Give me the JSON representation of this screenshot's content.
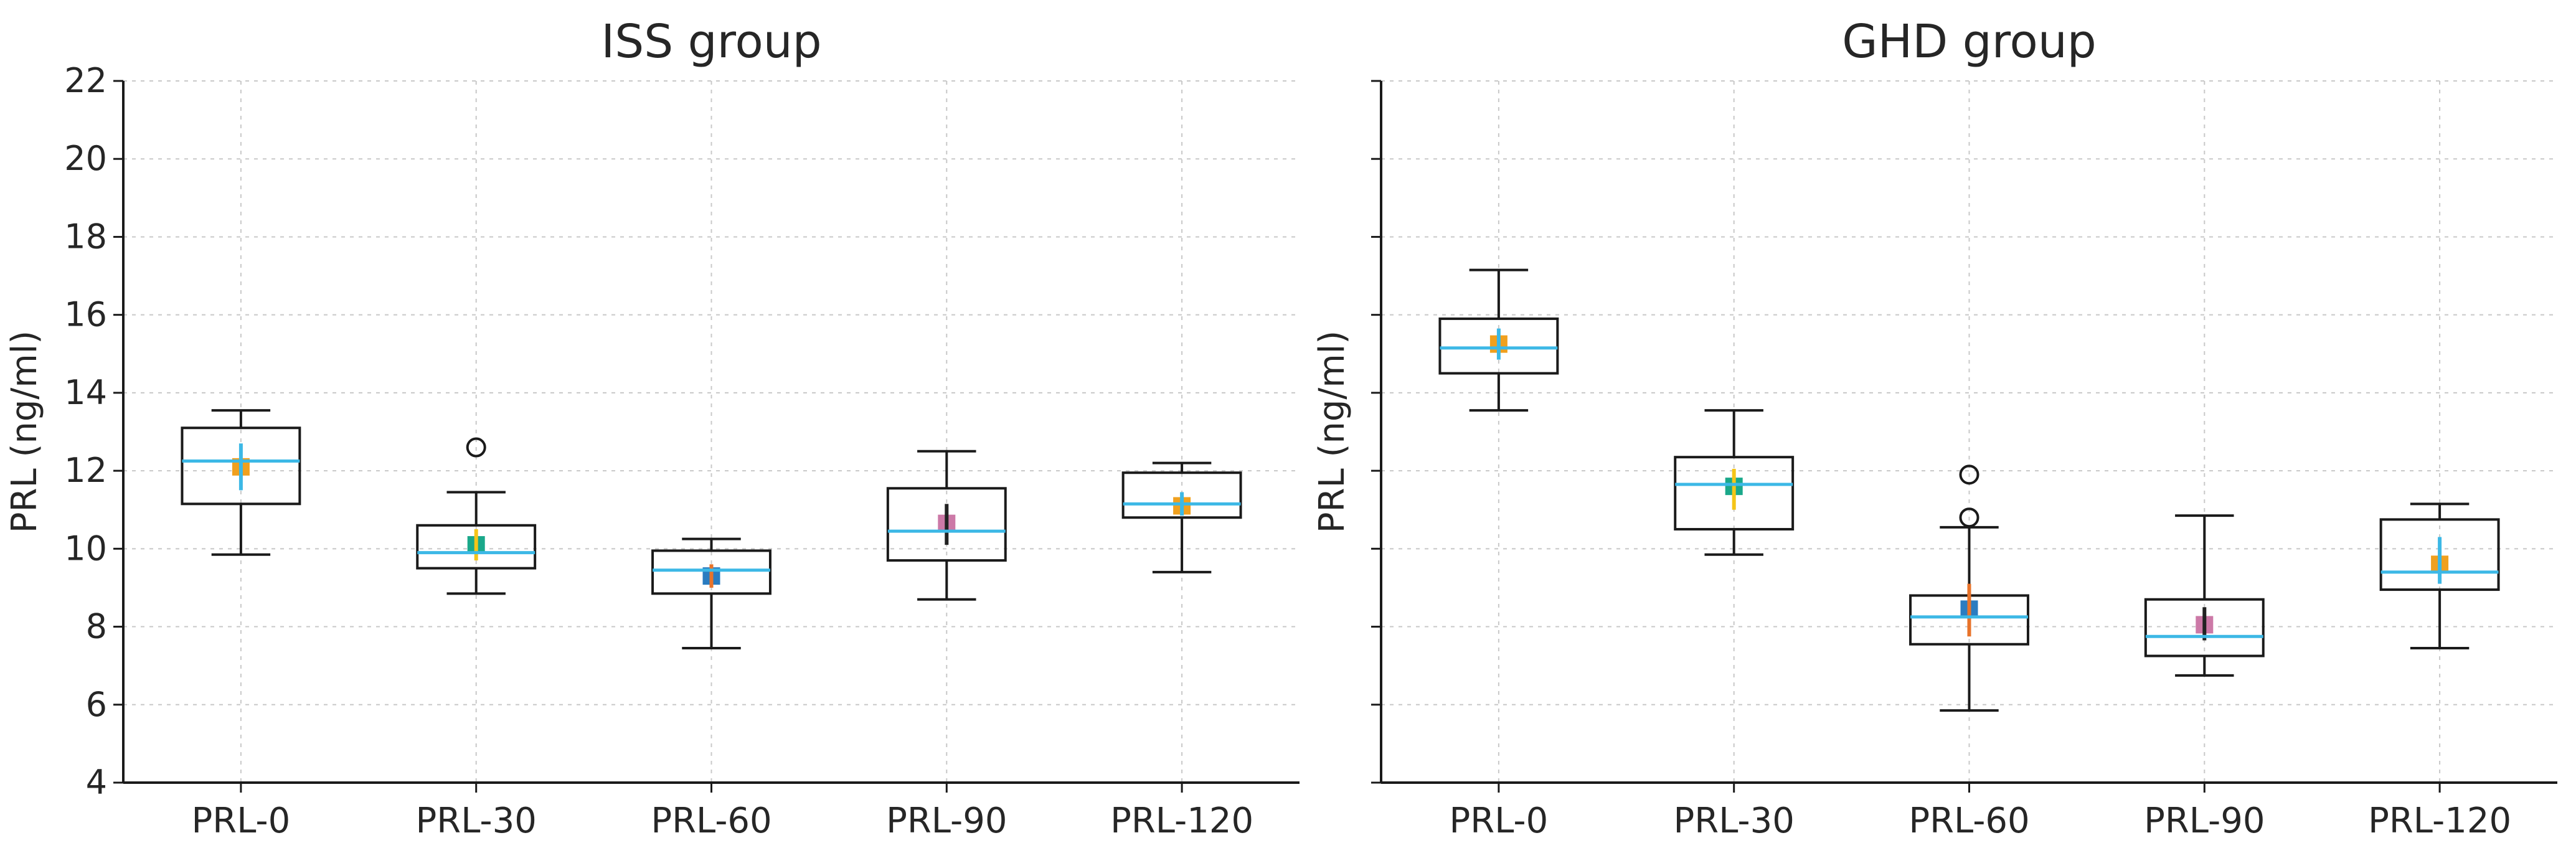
{
  "chart_data": [
    {
      "type": "box",
      "title": "ISS group",
      "xlabel": "",
      "ylabel": "PRL (ng/ml)",
      "ylim": [
        4,
        22
      ],
      "yticks": [
        4,
        6,
        8,
        10,
        12,
        14,
        16,
        18,
        20,
        22
      ],
      "show_ytick_labels": true,
      "grid": true,
      "categories": [
        "PRL-0",
        "PRL-30",
        "PRL-60",
        "PRL-90",
        "PRL-120"
      ],
      "boxes": [
        {
          "whisker_low": 9.85,
          "q1": 11.15,
          "median": 12.25,
          "q3": 13.1,
          "whisker_high": 13.55,
          "outliers": [],
          "mean": 12.1,
          "ci": [
            11.5,
            12.7
          ],
          "mean_color": "#f0a01e",
          "ci_color": "#3cb8e6"
        },
        {
          "whisker_low": 8.85,
          "q1": 9.5,
          "median": 9.9,
          "q3": 10.6,
          "whisker_high": 11.45,
          "outliers": [
            12.6
          ],
          "mean": 10.1,
          "ci": [
            9.7,
            10.5
          ],
          "mean_color": "#1aa88a",
          "ci_color": "#f5c518"
        },
        {
          "whisker_low": 7.45,
          "q1": 8.85,
          "median": 9.45,
          "q3": 9.95,
          "whisker_high": 10.25,
          "outliers": [],
          "mean": 9.3,
          "ci": [
            9.0,
            9.6
          ],
          "mean_color": "#2a7cc0",
          "ci_color": "#e8732a"
        },
        {
          "whisker_low": 8.7,
          "q1": 9.7,
          "median": 10.45,
          "q3": 11.55,
          "whisker_high": 12.5,
          "outliers": [],
          "mean": 10.65,
          "ci": [
            10.1,
            11.15
          ],
          "mean_color": "#cc79a7",
          "ci_color": "#222222"
        },
        {
          "whisker_low": 9.4,
          "q1": 10.8,
          "median": 11.15,
          "q3": 11.95,
          "whisker_high": 12.2,
          "outliers": [],
          "mean": 11.1,
          "ci": [
            10.85,
            11.45
          ],
          "mean_color": "#f0a01e",
          "ci_color": "#3cb8e6"
        }
      ]
    },
    {
      "type": "box",
      "title": "GHD group",
      "xlabel": "",
      "ylabel": "PRL (ng/ml)",
      "ylim": [
        4,
        22
      ],
      "yticks": [
        4,
        6,
        8,
        10,
        12,
        14,
        16,
        18,
        20,
        22
      ],
      "show_ytick_labels": false,
      "grid": true,
      "categories": [
        "PRL-0",
        "PRL-30",
        "PRL-60",
        "PRL-90",
        "PRL-120"
      ],
      "boxes": [
        {
          "whisker_low": 13.55,
          "q1": 14.5,
          "median": 15.15,
          "q3": 15.9,
          "whisker_high": 17.15,
          "outliers": [],
          "mean": 15.25,
          "ci": [
            14.85,
            15.65
          ],
          "mean_color": "#f0a01e",
          "ci_color": "#3cb8e6"
        },
        {
          "whisker_low": 9.85,
          "q1": 10.5,
          "median": 11.65,
          "q3": 12.35,
          "whisker_high": 13.55,
          "outliers": [],
          "mean": 11.6,
          "ci": [
            11.0,
            12.05
          ],
          "mean_color": "#1aa88a",
          "ci_color": "#f5c518"
        },
        {
          "whisker_low": 5.85,
          "q1": 7.55,
          "median": 8.25,
          "q3": 8.8,
          "whisker_high": 10.55,
          "outliers": [
            10.8,
            11.9
          ],
          "mean": 8.45,
          "ci": [
            7.75,
            9.1
          ],
          "mean_color": "#2a7cc0",
          "ci_color": "#e8732a"
        },
        {
          "whisker_low": 6.75,
          "q1": 7.25,
          "median": 7.75,
          "q3": 8.7,
          "whisker_high": 10.85,
          "outliers": [],
          "mean": 8.05,
          "ci": [
            7.65,
            8.5
          ],
          "mean_color": "#cc79a7",
          "ci_color": "#222222"
        },
        {
          "whisker_low": 7.45,
          "q1": 8.95,
          "median": 9.4,
          "q3": 10.75,
          "whisker_high": 11.15,
          "outliers": [],
          "mean": 9.6,
          "ci": [
            9.1,
            10.3
          ],
          "mean_color": "#f0a01e",
          "ci_color": "#3cb8e6"
        }
      ]
    }
  ],
  "colors": {
    "box_edge": "#1a1a1a",
    "median_line": "#3cb8e6",
    "grid": "#c8c8c8",
    "text": "#262626"
  }
}
